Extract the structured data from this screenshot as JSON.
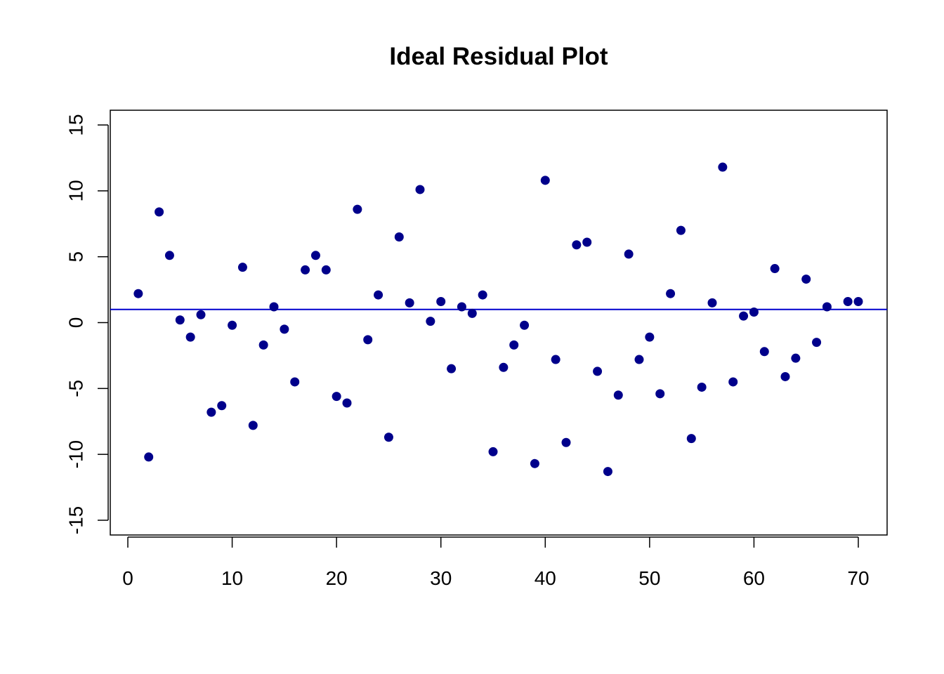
{
  "chart_data": {
    "type": "scatter",
    "title": "Ideal Residual Plot",
    "xlabel": "",
    "ylabel": "",
    "xlim": [
      0,
      70
    ],
    "ylim": [
      -15,
      15
    ],
    "x_ticks": [
      0,
      10,
      20,
      30,
      40,
      50,
      60,
      70
    ],
    "y_ticks": [
      -15,
      -10,
      -5,
      0,
      5,
      10,
      15
    ],
    "grid": false,
    "point_color": "#00008B",
    "hline": {
      "y": 1.0,
      "color": "#0000CD"
    },
    "series": [
      {
        "x": [
          1,
          2,
          3,
          4,
          5,
          6,
          7,
          8,
          9,
          10,
          11,
          12,
          13,
          14,
          15,
          16,
          17,
          18,
          19,
          20,
          21,
          22,
          23,
          24,
          25,
          26,
          27,
          28,
          29,
          30,
          31,
          32,
          33,
          34,
          35,
          36,
          37,
          38,
          39,
          40,
          41,
          42,
          43,
          44,
          45,
          46,
          47,
          48,
          49,
          50,
          51,
          52,
          53,
          54,
          55,
          56,
          57,
          58,
          59,
          60,
          61,
          62,
          63,
          64,
          65,
          66,
          67,
          69,
          70
        ],
        "y": [
          2.2,
          -10.2,
          8.4,
          5.1,
          0.2,
          -1.1,
          0.6,
          -6.8,
          -6.3,
          -0.2,
          4.2,
          -7.8,
          -1.7,
          1.2,
          -0.5,
          -4.5,
          4.0,
          5.1,
          4.0,
          -5.6,
          -6.1,
          8.6,
          -1.3,
          2.1,
          -8.7,
          6.5,
          1.5,
          10.1,
          0.1,
          1.6,
          -3.5,
          1.2,
          0.7,
          2.1,
          -9.8,
          -3.4,
          -1.7,
          -0.2,
          -10.7,
          10.8,
          -2.8,
          -9.1,
          5.9,
          6.1,
          -3.7,
          -11.3,
          -5.5,
          5.2,
          -2.8,
          -1.1,
          -5.4,
          2.2,
          7.0,
          -8.8,
          -4.9,
          1.5,
          11.8,
          -4.5,
          0.5,
          0.8,
          -2.2,
          4.1,
          -4.1,
          -2.7,
          3.3,
          -1.5,
          1.2,
          1.6,
          1.6
        ]
      }
    ]
  }
}
